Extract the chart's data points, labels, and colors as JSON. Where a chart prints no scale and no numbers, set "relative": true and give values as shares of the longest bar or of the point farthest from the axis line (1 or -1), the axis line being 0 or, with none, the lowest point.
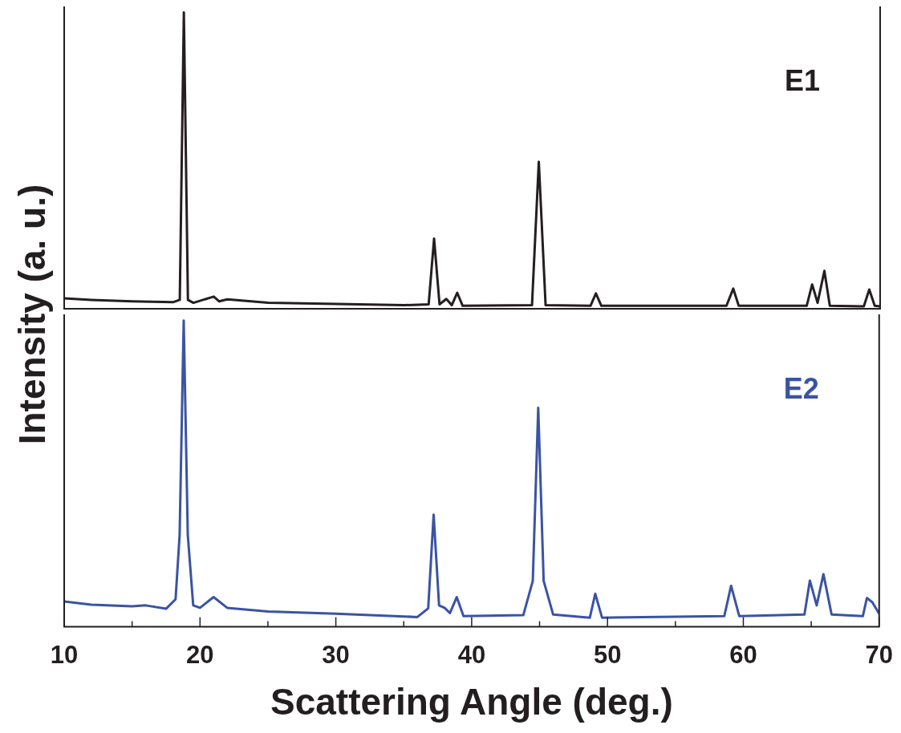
{
  "chart_data": [
    {
      "type": "line",
      "relative": true,
      "ylabel": "Intensity (a. u.)",
      "xlim": [
        10,
        70
      ],
      "tick_labels": false,
      "legend": false,
      "grid": false,
      "marker": "none",
      "series": [
        {
          "name": "E1",
          "color": "#231f20",
          "x": [
            10,
            12,
            15,
            18,
            18.5,
            18.8,
            19.1,
            19.5,
            21,
            21.4,
            22,
            25,
            30,
            35,
            36.8,
            37.2,
            37.6,
            38.1,
            38.5,
            38.9,
            39.3,
            44.4,
            44.9,
            45.4,
            48.7,
            49.1,
            49.5,
            58.7,
            59.2,
            59.6,
            64.6,
            65.0,
            65.4,
            65.9,
            66.3,
            68.8,
            69.2,
            69.6,
            70
          ],
          "values": [
            0.035,
            0.03,
            0.025,
            0.022,
            0.03,
            1.0,
            0.03,
            0.02,
            0.041,
            0.025,
            0.032,
            0.02,
            0.016,
            0.012,
            0.015,
            0.237,
            0.015,
            0.033,
            0.012,
            0.054,
            0.01,
            0.012,
            0.496,
            0.012,
            0.01,
            0.052,
            0.01,
            0.01,
            0.068,
            0.01,
            0.01,
            0.082,
            0.02,
            0.128,
            0.01,
            0.008,
            0.065,
            0.01,
            0.008
          ]
        }
      ]
    },
    {
      "type": "line",
      "relative": true,
      "xlabel": "Scattering Angle (deg.)",
      "xlim": [
        10,
        70
      ],
      "xticks": [
        10,
        {
          "value": 15,
          "label": null
        },
        20,
        {
          "value": 25,
          "label": null
        },
        30,
        {
          "value": 35,
          "label": null
        },
        40,
        {
          "value": 45,
          "label": null
        },
        50,
        {
          "value": 55,
          "label": null
        },
        60,
        {
          "value": 65,
          "label": null
        },
        70
      ],
      "tick_labels": "x",
      "legend": false,
      "grid": false,
      "marker": "none",
      "series": [
        {
          "name": "E2",
          "color": "#3a53a4",
          "x": [
            10,
            12,
            15,
            16,
            17.5,
            18.2,
            18.5,
            18.8,
            19.1,
            19.5,
            20,
            21,
            22,
            25,
            30,
            36,
            36.8,
            37.2,
            37.6,
            38.0,
            38.4,
            38.9,
            39.4,
            43.8,
            44.5,
            44.9,
            45.3,
            46,
            48.7,
            49.1,
            49.6,
            58.6,
            59.1,
            59.7,
            64.5,
            64.9,
            65.4,
            65.9,
            66.5,
            68.8,
            69.1,
            69.5,
            70
          ],
          "values": [
            0.083,
            0.072,
            0.067,
            0.07,
            0.059,
            0.09,
            0.3,
            1.0,
            0.3,
            0.07,
            0.062,
            0.097,
            0.062,
            0.05,
            0.043,
            0.032,
            0.06,
            0.366,
            0.07,
            0.062,
            0.045,
            0.097,
            0.035,
            0.038,
            0.15,
            0.715,
            0.15,
            0.04,
            0.03,
            0.108,
            0.03,
            0.035,
            0.134,
            0.035,
            0.04,
            0.151,
            0.07,
            0.172,
            0.04,
            0.035,
            0.094,
            0.08,
            0.043
          ]
        }
      ]
    }
  ]
}
